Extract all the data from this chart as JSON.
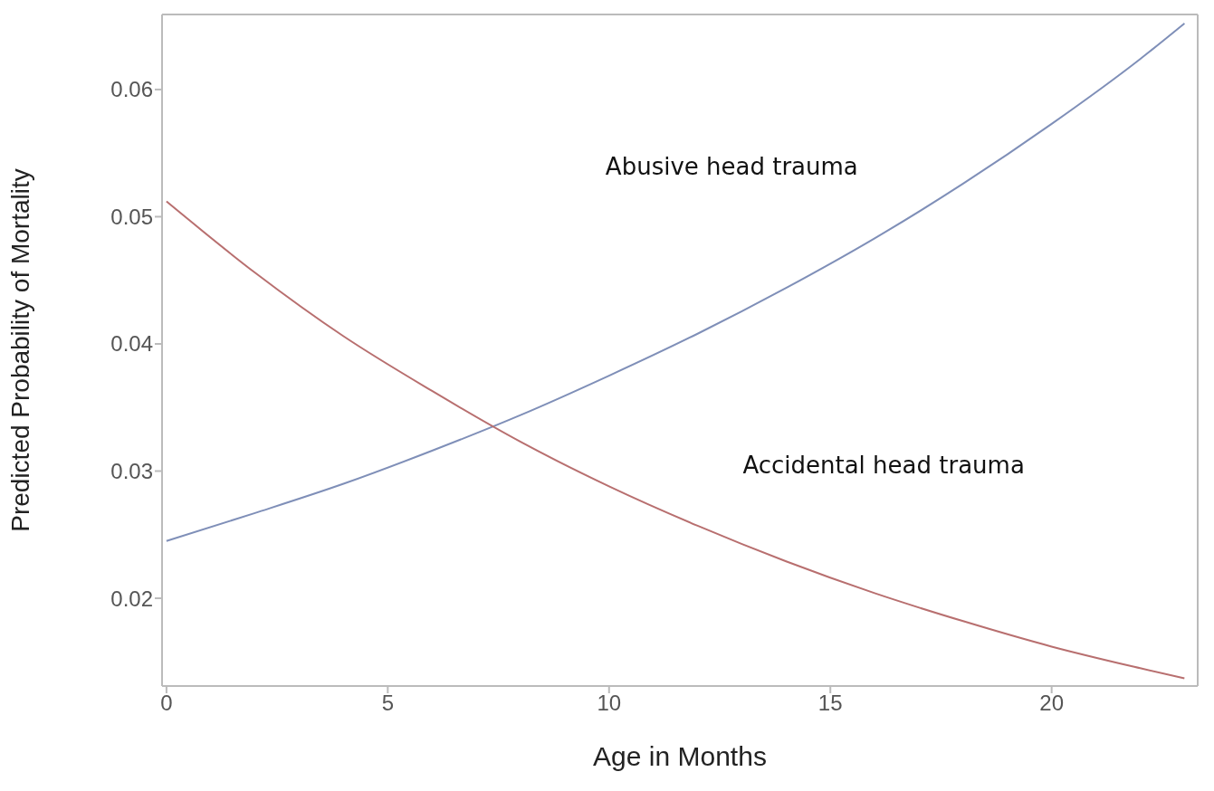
{
  "chart_data": {
    "type": "line",
    "xlabel": "Age in Months",
    "ylabel": "Predicted Probability of Mortality",
    "xlim": [
      -0.1,
      23.3
    ],
    "xticks": [
      0,
      5,
      10,
      15,
      20
    ],
    "ylim": [
      0.0131,
      0.0659
    ],
    "yticks": [
      0.02,
      0.03,
      0.04,
      0.05,
      0.06
    ],
    "grid": false,
    "legend": false,
    "marker": "none",
    "line_style": "solid",
    "x": [
      0,
      2,
      4,
      6,
      8,
      10,
      12,
      14,
      16,
      18,
      20,
      22,
      23
    ],
    "series": [
      {
        "name": "Abusive head trauma",
        "color": "#7f8fb8",
        "values": [
          0.0245,
          0.0267,
          0.029,
          0.0316,
          0.0344,
          0.0375,
          0.0408,
          0.0444,
          0.0483,
          0.0526,
          0.0573,
          0.0624,
          0.0652
        ]
      },
      {
        "name": "Accidental head trauma",
        "color": "#b86f6f",
        "values": [
          0.0512,
          0.0456,
          0.0406,
          0.0363,
          0.0323,
          0.0288,
          0.0257,
          0.0229,
          0.0204,
          0.0182,
          0.0162,
          0.0145,
          0.0137
        ]
      }
    ]
  }
}
